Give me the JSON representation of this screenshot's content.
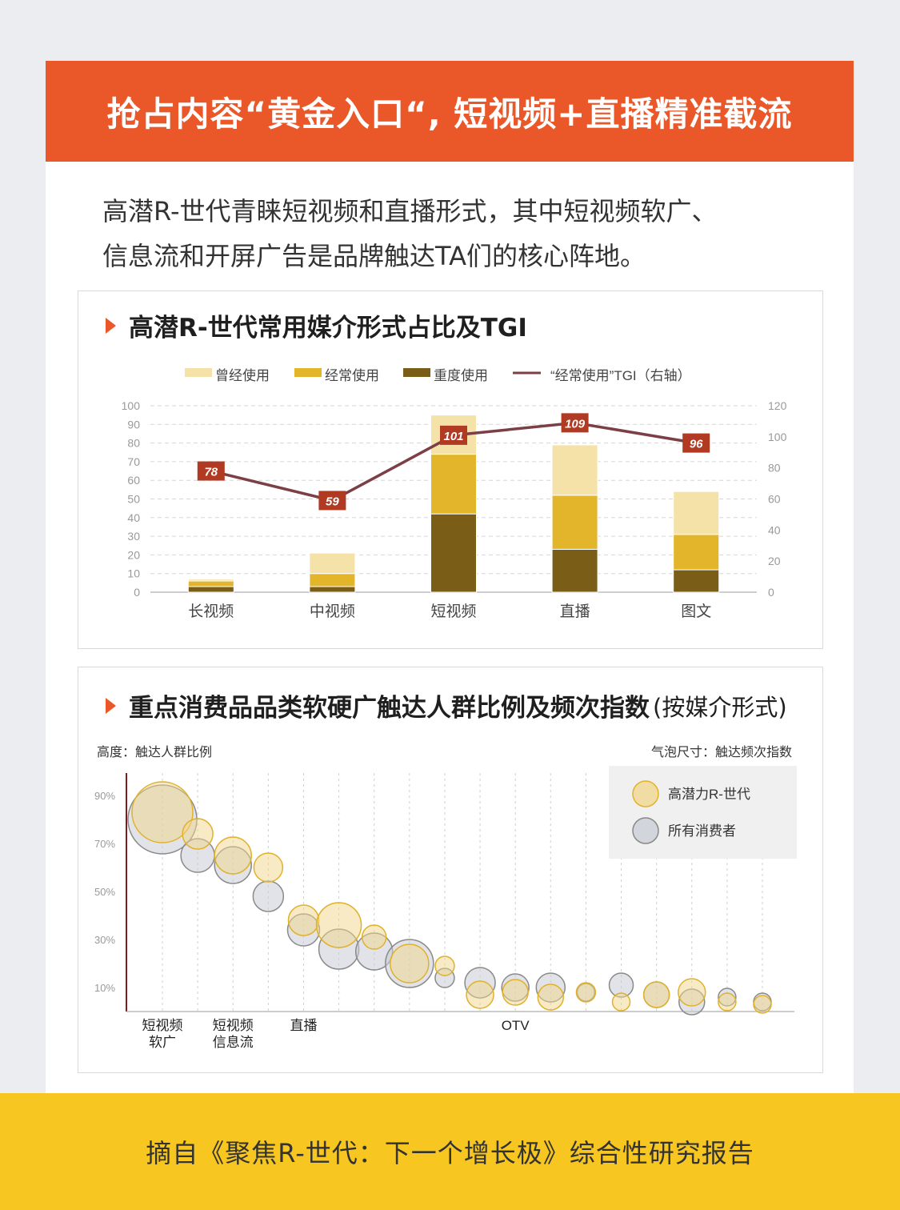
{
  "banner": {
    "title": "抢占内容“黄金入口“, 短视频+直播精准截流"
  },
  "intro": {
    "line1": "高潜R-世代青睐短视频和直播形式，其中短视频软广、",
    "line2": "信息流和开屏广告是品牌触达TA们的核心阵地。"
  },
  "colors": {
    "banner": "#ea5729",
    "ever": "#f4e2a8",
    "often": "#e2b52b",
    "heavy": "#7a5d16",
    "tgi": "#7b3f45",
    "tgi_label": "#b03a22",
    "high_potential": "#f2d68a",
    "all": "#c8ccd6",
    "footer": "#f7c620"
  },
  "chart_data": [
    {
      "type": "bar",
      "title": "高潜R-世代常用媒介形式占比及TGI",
      "categories": [
        "长视频",
        "中视频",
        "短视频",
        "直播",
        "图文"
      ],
      "stacked": true,
      "series": [
        {
          "name": "重度使用",
          "values": [
            3,
            3,
            42,
            23,
            12
          ]
        },
        {
          "name": "经常使用",
          "values": [
            3,
            7,
            32,
            29,
            19
          ]
        },
        {
          "name": "曾经使用",
          "values": [
            1,
            11,
            21,
            27,
            23
          ]
        }
      ],
      "line_series": {
        "name": "“经常使用”TGI（右轴）",
        "values": [
          78,
          59,
          101,
          109,
          96
        ]
      },
      "ylim": [
        0,
        100
      ],
      "y_ticks": [
        0,
        10,
        20,
        30,
        40,
        50,
        60,
        70,
        80,
        90,
        100
      ],
      "y2lim": [
        0,
        120
      ],
      "y2_ticks": [
        0,
        20,
        40,
        60,
        80,
        100,
        120
      ],
      "legend": [
        "曾经使用",
        "经常使用",
        "重度使用",
        "“经常使用”TGI（右轴）"
      ],
      "legend_placement": "top",
      "grid": true
    },
    {
      "type": "scatter",
      "title": "重点消费品品类软硬广触达人群比例及频次指数",
      "subtitle": "(按媒介形式)",
      "ylabel": "高度：触达人群比例",
      "size_label": "气泡尺寸：触达频次指数",
      "y_ticks": [
        "90%",
        "70%",
        "50%",
        "30%",
        "10%"
      ],
      "ylim": [
        0,
        1
      ],
      "x_labels": [
        "短视频\n软广",
        "",
        "短视频\n信息流",
        "",
        "直播",
        "",
        "",
        "",
        "",
        "",
        "OTV",
        "",
        "",
        "",
        "",
        "",
        "",
        ""
      ],
      "legend": [
        "高潜力R-世代",
        "所有消费者"
      ],
      "legend_placement": "top-right",
      "series": [
        {
          "name": "高潜力R-世代",
          "y": [
            0.83,
            0.74,
            0.65,
            0.6,
            0.38,
            0.36,
            0.31,
            0.2,
            0.19,
            0.07,
            0.08,
            0.06,
            0.08,
            0.04,
            0.07,
            0.08,
            0.04,
            0.03
          ],
          "size": [
            38,
            19,
            23,
            18,
            19,
            28,
            15,
            24,
            12,
            17,
            16,
            16,
            12,
            11,
            16,
            17,
            11,
            11
          ]
        },
        {
          "name": "所有消费者",
          "y": [
            0.8,
            0.65,
            0.61,
            0.48,
            0.34,
            0.26,
            0.25,
            0.2,
            0.14,
            0.12,
            0.1,
            0.1,
            0.08,
            0.11,
            0.07,
            0.04,
            0.06,
            0.04
          ],
          "size": [
            43,
            21,
            23,
            19,
            20,
            25,
            23,
            30,
            12,
            19,
            17,
            18,
            11,
            15,
            16,
            16,
            11,
            11
          ]
        }
      ]
    }
  ],
  "footer": {
    "text": "摘自《聚焦R-世代：下一个增长极》综合性研究报告"
  }
}
